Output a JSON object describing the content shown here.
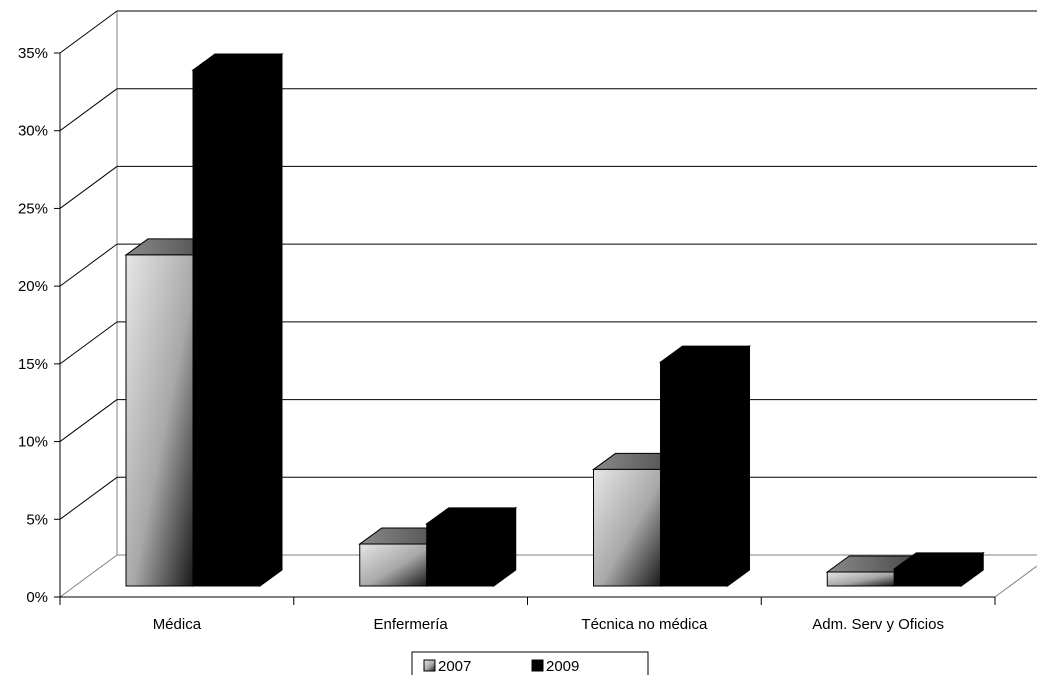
{
  "chart_data": {
    "type": "bar",
    "style": "3d-clustered-column",
    "categories": [
      "Médica",
      "Enfermería",
      "Técnica no médica",
      "Adm. Serv y Oficios"
    ],
    "series": [
      {
        "name": "2007",
        "values": [
          21.3,
          2.7,
          7.5,
          0.9
        ],
        "color": "#b0b0b0"
      },
      {
        "name": "2009",
        "values": [
          33.2,
          4.0,
          14.4,
          1.1
        ],
        "color": "#000000"
      }
    ],
    "ylim": [
      0,
      35
    ],
    "yticks": [
      "0%",
      "5%",
      "10%",
      "15%",
      "20%",
      "25%",
      "30%",
      "35%"
    ],
    "grid": true,
    "legend": "bottom-center"
  }
}
